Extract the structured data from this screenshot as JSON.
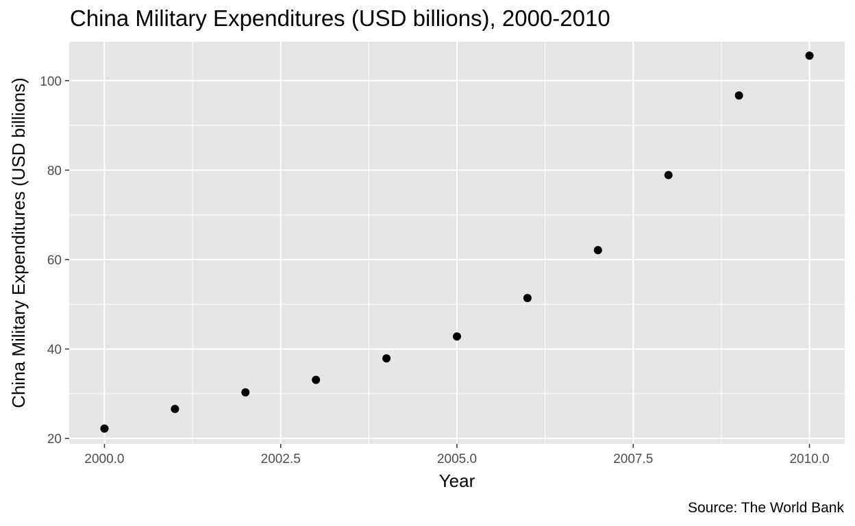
{
  "chart_data": {
    "type": "scatter",
    "title": "China Military Expenditures (USD billions), 2000-2010",
    "xlabel": "Year",
    "ylabel": "China Military Expenditures (USD billions)",
    "caption": "Source: The World Bank",
    "x": [
      2000,
      2001,
      2002,
      2003,
      2004,
      2005,
      2006,
      2007,
      2008,
      2009,
      2010
    ],
    "y": [
      22.2,
      26.6,
      30.3,
      33.1,
      37.9,
      42.8,
      51.4,
      62.1,
      78.9,
      96.7,
      105.6
    ],
    "xlim": [
      1999.5,
      2010.5
    ],
    "ylim": [
      18.8,
      108.7
    ],
    "xticks": [
      2000,
      2002.5,
      2005,
      2007.5,
      2010
    ],
    "xtick_labels": [
      "2000.0",
      "2002.5",
      "2005.0",
      "2007.5",
      "2010.0"
    ],
    "yticks": [
      20,
      40,
      60,
      80,
      100
    ],
    "ytick_labels": [
      "20",
      "40",
      "60",
      "80",
      "100"
    ],
    "grid": true,
    "colors": {
      "panel": "#e5e5e5",
      "grid": "#ffffff",
      "point": "#000000"
    }
  }
}
